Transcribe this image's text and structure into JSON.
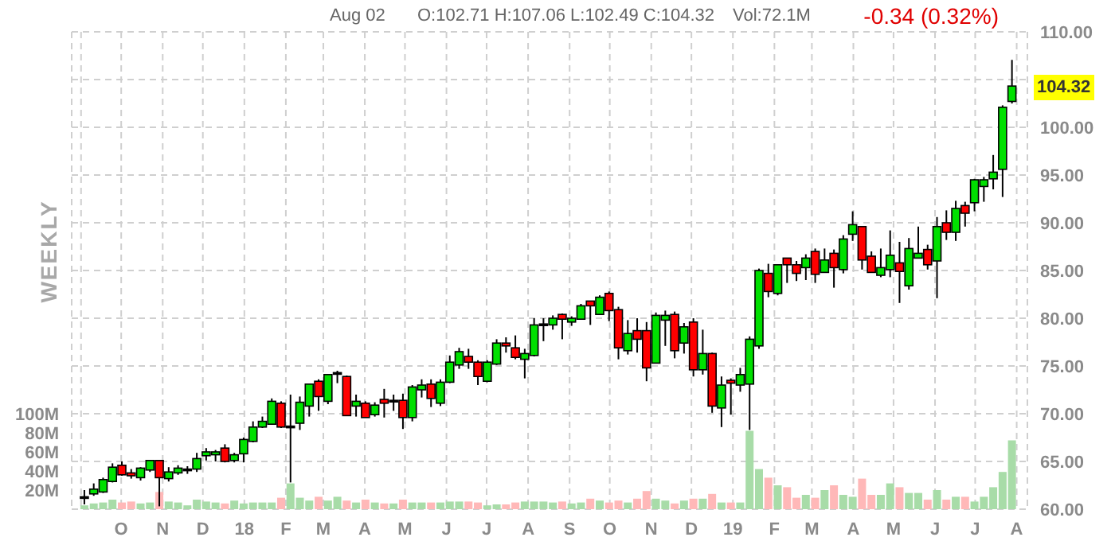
{
  "chart_data": {
    "type": "candlestick",
    "annotations": [
      "WEEKLY",
      "Aug 02",
      "O:102.71 H:107.06 L:102.49 C:104.32",
      "Vol:72.1M",
      "-0.34 (0.32%)",
      "104.32"
    ],
    "x": [
      "2017-09-04",
      "2017-09-11",
      "2017-09-18",
      "2017-09-25",
      "2017-10-02",
      "2017-10-09",
      "2017-10-16",
      "2017-10-23",
      "2017-10-30",
      "2017-11-06",
      "2017-11-13",
      "2017-11-20",
      "2017-11-27",
      "2017-12-04",
      "2017-12-11",
      "2017-12-18",
      "2017-12-25",
      "2018-01-01",
      "2018-01-08",
      "2018-01-15",
      "2018-01-22",
      "2018-01-29",
      "2018-02-05",
      "2018-02-12",
      "2018-02-19",
      "2018-02-26",
      "2018-03-05",
      "2018-03-12",
      "2018-03-19",
      "2018-03-26",
      "2018-04-02",
      "2018-04-09",
      "2018-04-16",
      "2018-04-23",
      "2018-04-30",
      "2018-05-07",
      "2018-05-14",
      "2018-05-21",
      "2018-05-28",
      "2018-06-04",
      "2018-06-11",
      "2018-06-18",
      "2018-06-25",
      "2018-07-02",
      "2018-07-09",
      "2018-07-16",
      "2018-07-23",
      "2018-07-30",
      "2018-08-06",
      "2018-08-13",
      "2018-08-20",
      "2018-08-27",
      "2018-09-03",
      "2018-09-10",
      "2018-09-17",
      "2018-09-24",
      "2018-10-01",
      "2018-10-08",
      "2018-10-15",
      "2018-10-22",
      "2018-10-29",
      "2018-11-05",
      "2018-11-12",
      "2018-11-19",
      "2018-11-26",
      "2018-12-03",
      "2018-12-10",
      "2018-12-17",
      "2018-12-24",
      "2018-12-31",
      "2019-01-07",
      "2019-01-14",
      "2019-01-21",
      "2019-01-28",
      "2019-02-04",
      "2019-02-11",
      "2019-02-18",
      "2019-02-25",
      "2019-03-04",
      "2019-03-11",
      "2019-03-18",
      "2019-03-25",
      "2019-04-01",
      "2019-04-08",
      "2019-04-15",
      "2019-04-22",
      "2019-04-29",
      "2019-05-06",
      "2019-05-13",
      "2019-05-20",
      "2019-05-27",
      "2019-06-03",
      "2019-06-10",
      "2019-06-17",
      "2019-06-24",
      "2019-07-01",
      "2019-07-08",
      "2019-07-15",
      "2019-07-22",
      "2019-07-29"
    ],
    "series": [
      {
        "ohlc": [
          [
            61.3,
            62.0,
            60.5,
            61.3
          ],
          [
            61.6,
            62.7,
            61.4,
            62.1
          ],
          [
            61.8,
            63.3,
            61.7,
            63.1
          ],
          [
            62.9,
            64.8,
            62.8,
            64.4
          ],
          [
            64.6,
            65.0,
            63.5,
            63.6
          ],
          [
            63.8,
            64.2,
            63.2,
            63.5
          ],
          [
            63.3,
            64.4,
            63.0,
            64.3
          ],
          [
            64.1,
            65.1,
            63.9,
            65.1
          ],
          [
            65.1,
            65.1,
            60.3,
            63.3
          ],
          [
            63.2,
            64.4,
            62.9,
            63.9
          ],
          [
            63.8,
            64.6,
            63.6,
            64.3
          ],
          [
            64.2,
            64.5,
            63.7,
            64.2
          ],
          [
            64.2,
            65.9,
            63.9,
            65.3
          ],
          [
            65.6,
            66.4,
            65.1,
            66.0
          ],
          [
            65.7,
            66.2,
            65.0,
            66.0
          ],
          [
            66.4,
            66.8,
            64.9,
            65.0
          ],
          [
            65.1,
            65.9,
            64.9,
            65.7
          ],
          [
            65.8,
            67.5,
            64.9,
            67.3
          ],
          [
            67.1,
            69.2,
            67.0,
            68.6
          ],
          [
            68.6,
            69.7,
            68.5,
            69.2
          ],
          [
            68.9,
            71.6,
            68.9,
            71.3
          ],
          [
            71.1,
            71.3,
            68.5,
            68.6
          ],
          [
            68.7,
            72.0,
            62.8,
            68.7
          ],
          [
            69.0,
            71.8,
            68.3,
            71.2
          ],
          [
            70.8,
            73.1,
            69.7,
            73.1
          ],
          [
            73.4,
            73.6,
            70.3,
            71.8
          ],
          [
            71.3,
            74.1,
            71.0,
            74.1
          ],
          [
            74.3,
            74.5,
            73.2,
            74.3
          ],
          [
            73.9,
            74.0,
            69.8,
            69.8
          ],
          [
            70.8,
            72.0,
            69.7,
            71.3
          ],
          [
            71.1,
            71.3,
            69.6,
            69.6
          ],
          [
            69.9,
            71.2,
            69.7,
            70.9
          ],
          [
            71.5,
            72.6,
            69.6,
            71.1
          ],
          [
            71.4,
            72.0,
            70.3,
            71.4
          ],
          [
            71.4,
            72.1,
            68.4,
            69.6
          ],
          [
            69.6,
            73.0,
            69.2,
            72.8
          ],
          [
            72.5,
            73.6,
            71.7,
            73.0
          ],
          [
            73.1,
            73.6,
            70.7,
            71.6
          ],
          [
            71.1,
            73.6,
            70.8,
            73.3
          ],
          [
            73.3,
            76.1,
            73.2,
            75.4
          ],
          [
            75.1,
            76.9,
            74.7,
            76.5
          ],
          [
            76.0,
            76.8,
            74.7,
            75.4
          ],
          [
            75.4,
            75.6,
            73.0,
            73.9
          ],
          [
            73.4,
            75.6,
            73.3,
            75.4
          ],
          [
            75.2,
            77.8,
            75.1,
            77.4
          ],
          [
            77.4,
            78.0,
            76.4,
            77.1
          ],
          [
            76.9,
            78.2,
            75.7,
            75.9
          ],
          [
            75.7,
            76.8,
            73.7,
            76.3
          ],
          [
            76.1,
            80.0,
            76.0,
            79.3
          ],
          [
            79.4,
            80.0,
            77.6,
            79.4
          ],
          [
            79.3,
            80.3,
            78.8,
            80.0
          ],
          [
            80.4,
            80.5,
            77.8,
            79.9
          ],
          [
            79.6,
            80.2,
            79.2,
            80.0
          ],
          [
            79.9,
            81.5,
            79.9,
            81.3
          ],
          [
            81.8,
            81.8,
            79.3,
            81.3
          ],
          [
            80.4,
            82.4,
            80.4,
            82.2
          ],
          [
            82.6,
            82.8,
            79.7,
            80.8
          ],
          [
            80.9,
            81.2,
            75.7,
            76.9
          ],
          [
            76.6,
            79.8,
            76.2,
            78.4
          ],
          [
            78.7,
            80.0,
            76.4,
            77.8
          ],
          [
            78.7,
            79.6,
            73.4,
            74.8
          ],
          [
            75.3,
            80.6,
            75.3,
            80.3
          ],
          [
            79.8,
            80.8,
            77.1,
            80.3
          ],
          [
            80.4,
            80.7,
            75.8,
            76.6
          ],
          [
            77.4,
            79.5,
            76.3,
            79.1
          ],
          [
            79.6,
            80.0,
            73.9,
            74.6
          ],
          [
            74.6,
            78.8,
            74.1,
            76.3
          ],
          [
            76.3,
            76.4,
            70.1,
            70.8
          ],
          [
            70.6,
            73.9,
            68.6,
            73.0
          ],
          [
            73.5,
            73.7,
            69.9,
            73.2
          ],
          [
            73.0,
            74.8,
            72.3,
            74.1
          ],
          [
            73.1,
            78.1,
            68.3,
            77.8
          ],
          [
            77.1,
            85.2,
            76.8,
            85.0
          ],
          [
            84.7,
            85.7,
            82.2,
            82.8
          ],
          [
            82.6,
            85.6,
            82.4,
            85.6
          ],
          [
            86.3,
            86.3,
            83.7,
            85.6
          ],
          [
            85.6,
            86.0,
            83.9,
            84.7
          ],
          [
            85.3,
            86.7,
            84.0,
            86.3
          ],
          [
            87.0,
            87.3,
            83.7,
            84.6
          ],
          [
            84.8,
            87.3,
            84.8,
            86.1
          ],
          [
            86.8,
            87.2,
            83.2,
            85.3
          ],
          [
            85.1,
            88.7,
            84.7,
            88.3
          ],
          [
            88.8,
            91.2,
            88.1,
            89.8
          ],
          [
            89.6,
            89.6,
            85.1,
            86.1
          ],
          [
            86.5,
            87.0,
            84.8,
            84.8
          ],
          [
            84.5,
            87.3,
            84.3,
            85.3
          ],
          [
            85.1,
            89.2,
            84.3,
            86.6
          ],
          [
            85.8,
            88.0,
            81.6,
            84.9
          ],
          [
            83.4,
            88.4,
            83.0,
            87.3
          ],
          [
            86.3,
            89.6,
            86.3,
            86.8
          ],
          [
            87.2,
            87.7,
            85.1,
            85.6
          ],
          [
            86.0,
            90.6,
            82.1,
            89.6
          ],
          [
            90.0,
            91.3,
            88.2,
            89.0
          ],
          [
            89.0,
            92.3,
            88.1,
            91.5
          ],
          [
            91.8,
            92.2,
            89.6,
            91.0
          ],
          [
            92.1,
            94.6,
            91.2,
            94.5
          ],
          [
            93.8,
            94.8,
            92.2,
            94.5
          ],
          [
            94.6,
            97.1,
            93.5,
            95.3
          ],
          [
            95.6,
            102.3,
            92.7,
            102.1
          ],
          [
            102.71,
            107.06,
            102.49,
            104.32
          ]
        ],
        "colors": [
          "#000000",
          "#00e000",
          "#00e000",
          "#00e000",
          "#ff0000",
          "#ff0000",
          "#00e000",
          "#00e000",
          "#ff0000",
          "#00e000",
          "#00e000",
          "#000000",
          "#00e000",
          "#00e000",
          "#00e000",
          "#ff0000",
          "#00e000",
          "#00e000",
          "#00e000",
          "#00e000",
          "#00e000",
          "#ff0000",
          "#000000",
          "#00e000",
          "#00e000",
          "#ff0000",
          "#00e000",
          "#000000",
          "#ff0000",
          "#00e000",
          "#ff0000",
          "#00e000",
          "#ff0000",
          "#000000",
          "#ff0000",
          "#00e000",
          "#00e000",
          "#ff0000",
          "#00e000",
          "#00e000",
          "#00e000",
          "#ff0000",
          "#ff0000",
          "#00e000",
          "#00e000",
          "#ff0000",
          "#ff0000",
          "#00e000",
          "#00e000",
          "#000000",
          "#00e000",
          "#ff0000",
          "#00e000",
          "#00e000",
          "#ff0000",
          "#00e000",
          "#ff0000",
          "#ff0000",
          "#00e000",
          "#ff0000",
          "#ff0000",
          "#00e000",
          "#00e000",
          "#ff0000",
          "#00e000",
          "#ff0000",
          "#00e000",
          "#ff0000",
          "#00e000",
          "#ff0000",
          "#00e000",
          "#00e000",
          "#00e000",
          "#ff0000",
          "#00e000",
          "#ff0000",
          "#ff0000",
          "#00e000",
          "#ff0000",
          "#00e000",
          "#ff0000",
          "#00e000",
          "#00e000",
          "#ff0000",
          "#ff0000",
          "#00e000",
          "#00e000",
          "#ff0000",
          "#00e000",
          "#00e000",
          "#ff0000",
          "#00e000",
          "#ff0000",
          "#00e000",
          "#ff0000",
          "#00e000",
          "#00e000",
          "#00e000",
          "#00e000",
          "#00e000"
        ]
      },
      {
        "type": "bar",
        "axis": "y2",
        "values": [
          4,
          6,
          7,
          10,
          7,
          8,
          6,
          7,
          18,
          8,
          7,
          4,
          10,
          8,
          7,
          6,
          9,
          6,
          7,
          7,
          7,
          12,
          27,
          12,
          9,
          13,
          9,
          13,
          9,
          7,
          10,
          7,
          6,
          6,
          10,
          7,
          7,
          7,
          7,
          8,
          8,
          8,
          7,
          4,
          5,
          5,
          7,
          8,
          8,
          8,
          7,
          8,
          6,
          7,
          11,
          9,
          7,
          9,
          7,
          11,
          19,
          11,
          9,
          6,
          9,
          11,
          11,
          16,
          7,
          7,
          7,
          82,
          42,
          33,
          25,
          23,
          12,
          15,
          12,
          20,
          25,
          15,
          13,
          32,
          15,
          15,
          27,
          23,
          17,
          17,
          10,
          20,
          10,
          13,
          13,
          8,
          13,
          23,
          39,
          72.1
        ],
        "colors": [
          "#a8dca8",
          "#a8dca8",
          "#a8dca8",
          "#a8dca8",
          "#ffb8b8",
          "#ffb8b8",
          "#a8dca8",
          "#a8dca8",
          "#ffb8b8",
          "#a8dca8",
          "#a8dca8",
          "#a8dca8",
          "#a8dca8",
          "#a8dca8",
          "#a8dca8",
          "#ffb8b8",
          "#a8dca8",
          "#a8dca8",
          "#a8dca8",
          "#a8dca8",
          "#a8dca8",
          "#ffb8b8",
          "#a8dca8",
          "#a8dca8",
          "#a8dca8",
          "#ffb8b8",
          "#a8dca8",
          "#a8dca8",
          "#ffb8b8",
          "#a8dca8",
          "#ffb8b8",
          "#a8dca8",
          "#ffb8b8",
          "#a8dca8",
          "#ffb8b8",
          "#a8dca8",
          "#a8dca8",
          "#ffb8b8",
          "#a8dca8",
          "#a8dca8",
          "#a8dca8",
          "#ffb8b8",
          "#ffb8b8",
          "#a8dca8",
          "#a8dca8",
          "#ffb8b8",
          "#ffb8b8",
          "#a8dca8",
          "#a8dca8",
          "#a8dca8",
          "#a8dca8",
          "#ffb8b8",
          "#a8dca8",
          "#a8dca8",
          "#ffb8b8",
          "#a8dca8",
          "#ffb8b8",
          "#ffb8b8",
          "#a8dca8",
          "#ffb8b8",
          "#ffb8b8",
          "#a8dca8",
          "#a8dca8",
          "#ffb8b8",
          "#a8dca8",
          "#ffb8b8",
          "#a8dca8",
          "#ffb8b8",
          "#a8dca8",
          "#ffb8b8",
          "#a8dca8",
          "#a8dca8",
          "#a8dca8",
          "#ffb8b8",
          "#a8dca8",
          "#ffb8b8",
          "#ffb8b8",
          "#a8dca8",
          "#ffb8b8",
          "#a8dca8",
          "#ffb8b8",
          "#a8dca8",
          "#a8dca8",
          "#ffb8b8",
          "#ffb8b8",
          "#a8dca8",
          "#a8dca8",
          "#ffb8b8",
          "#a8dca8",
          "#a8dca8",
          "#ffb8b8",
          "#a8dca8",
          "#ffb8b8",
          "#a8dca8",
          "#ffb8b8",
          "#a8dca8",
          "#a8dca8",
          "#a8dca8",
          "#a8dca8",
          "#a8dca8"
        ]
      }
    ],
    "xlim": [
      "2017-08-25",
      "2019-08-09"
    ],
    "xticks": [
      {
        "value": "2017-09-01",
        "label": null
      },
      {
        "value": "2017-10-01",
        "label": "O"
      },
      {
        "value": "2017-11-01",
        "label": "N"
      },
      {
        "value": "2017-12-01",
        "label": "D"
      },
      {
        "value": "2018-01-01",
        "label": "18"
      },
      {
        "value": "2018-02-01",
        "label": "F"
      },
      {
        "value": "2018-03-01",
        "label": "M"
      },
      {
        "value": "2018-04-01",
        "label": "A"
      },
      {
        "value": "2018-05-01",
        "label": "M"
      },
      {
        "value": "2018-06-01",
        "label": "J"
      },
      {
        "value": "2018-07-01",
        "label": "J"
      },
      {
        "value": "2018-08-01",
        "label": "A"
      },
      {
        "value": "2018-09-01",
        "label": "S"
      },
      {
        "value": "2018-10-01",
        "label": "O"
      },
      {
        "value": "2018-11-01",
        "label": "N"
      },
      {
        "value": "2018-12-01",
        "label": "D"
      },
      {
        "value": "2019-01-01",
        "label": "19"
      },
      {
        "value": "2019-02-01",
        "label": "F"
      },
      {
        "value": "2019-03-01",
        "label": "M"
      },
      {
        "value": "2019-04-01",
        "label": "A"
      },
      {
        "value": "2019-05-01",
        "label": "M"
      },
      {
        "value": "2019-06-01",
        "label": "J"
      },
      {
        "value": "2019-07-01",
        "label": "J"
      },
      {
        "value": "2019-08-01",
        "label": "A"
      }
    ],
    "ylim": [
      60,
      110
    ],
    "yticks": [
      {
        "value": 60,
        "label": "60.00"
      },
      {
        "value": 65,
        "label": "65.00"
      },
      {
        "value": 70,
        "label": "70.00"
      },
      {
        "value": 75,
        "label": "75.00"
      },
      {
        "value": 80,
        "label": "80.00"
      },
      {
        "value": 85,
        "label": "85.00"
      },
      {
        "value": 90,
        "label": "90.00"
      },
      {
        "value": 95,
        "label": "95.00"
      },
      {
        "value": 100,
        "label": "100.00"
      },
      {
        "value": 105,
        "label": null
      },
      {
        "value": 110,
        "label": "110.00"
      }
    ],
    "y2lim": [
      0,
      500
    ],
    "y2ticks": [
      {
        "value": 20,
        "label": "20M"
      },
      {
        "value": 40,
        "label": "40M"
      },
      {
        "value": 60,
        "label": "60M"
      },
      {
        "value": 80,
        "label": "80M"
      },
      {
        "value": 100,
        "label": "100M"
      }
    ],
    "grid": true
  }
}
